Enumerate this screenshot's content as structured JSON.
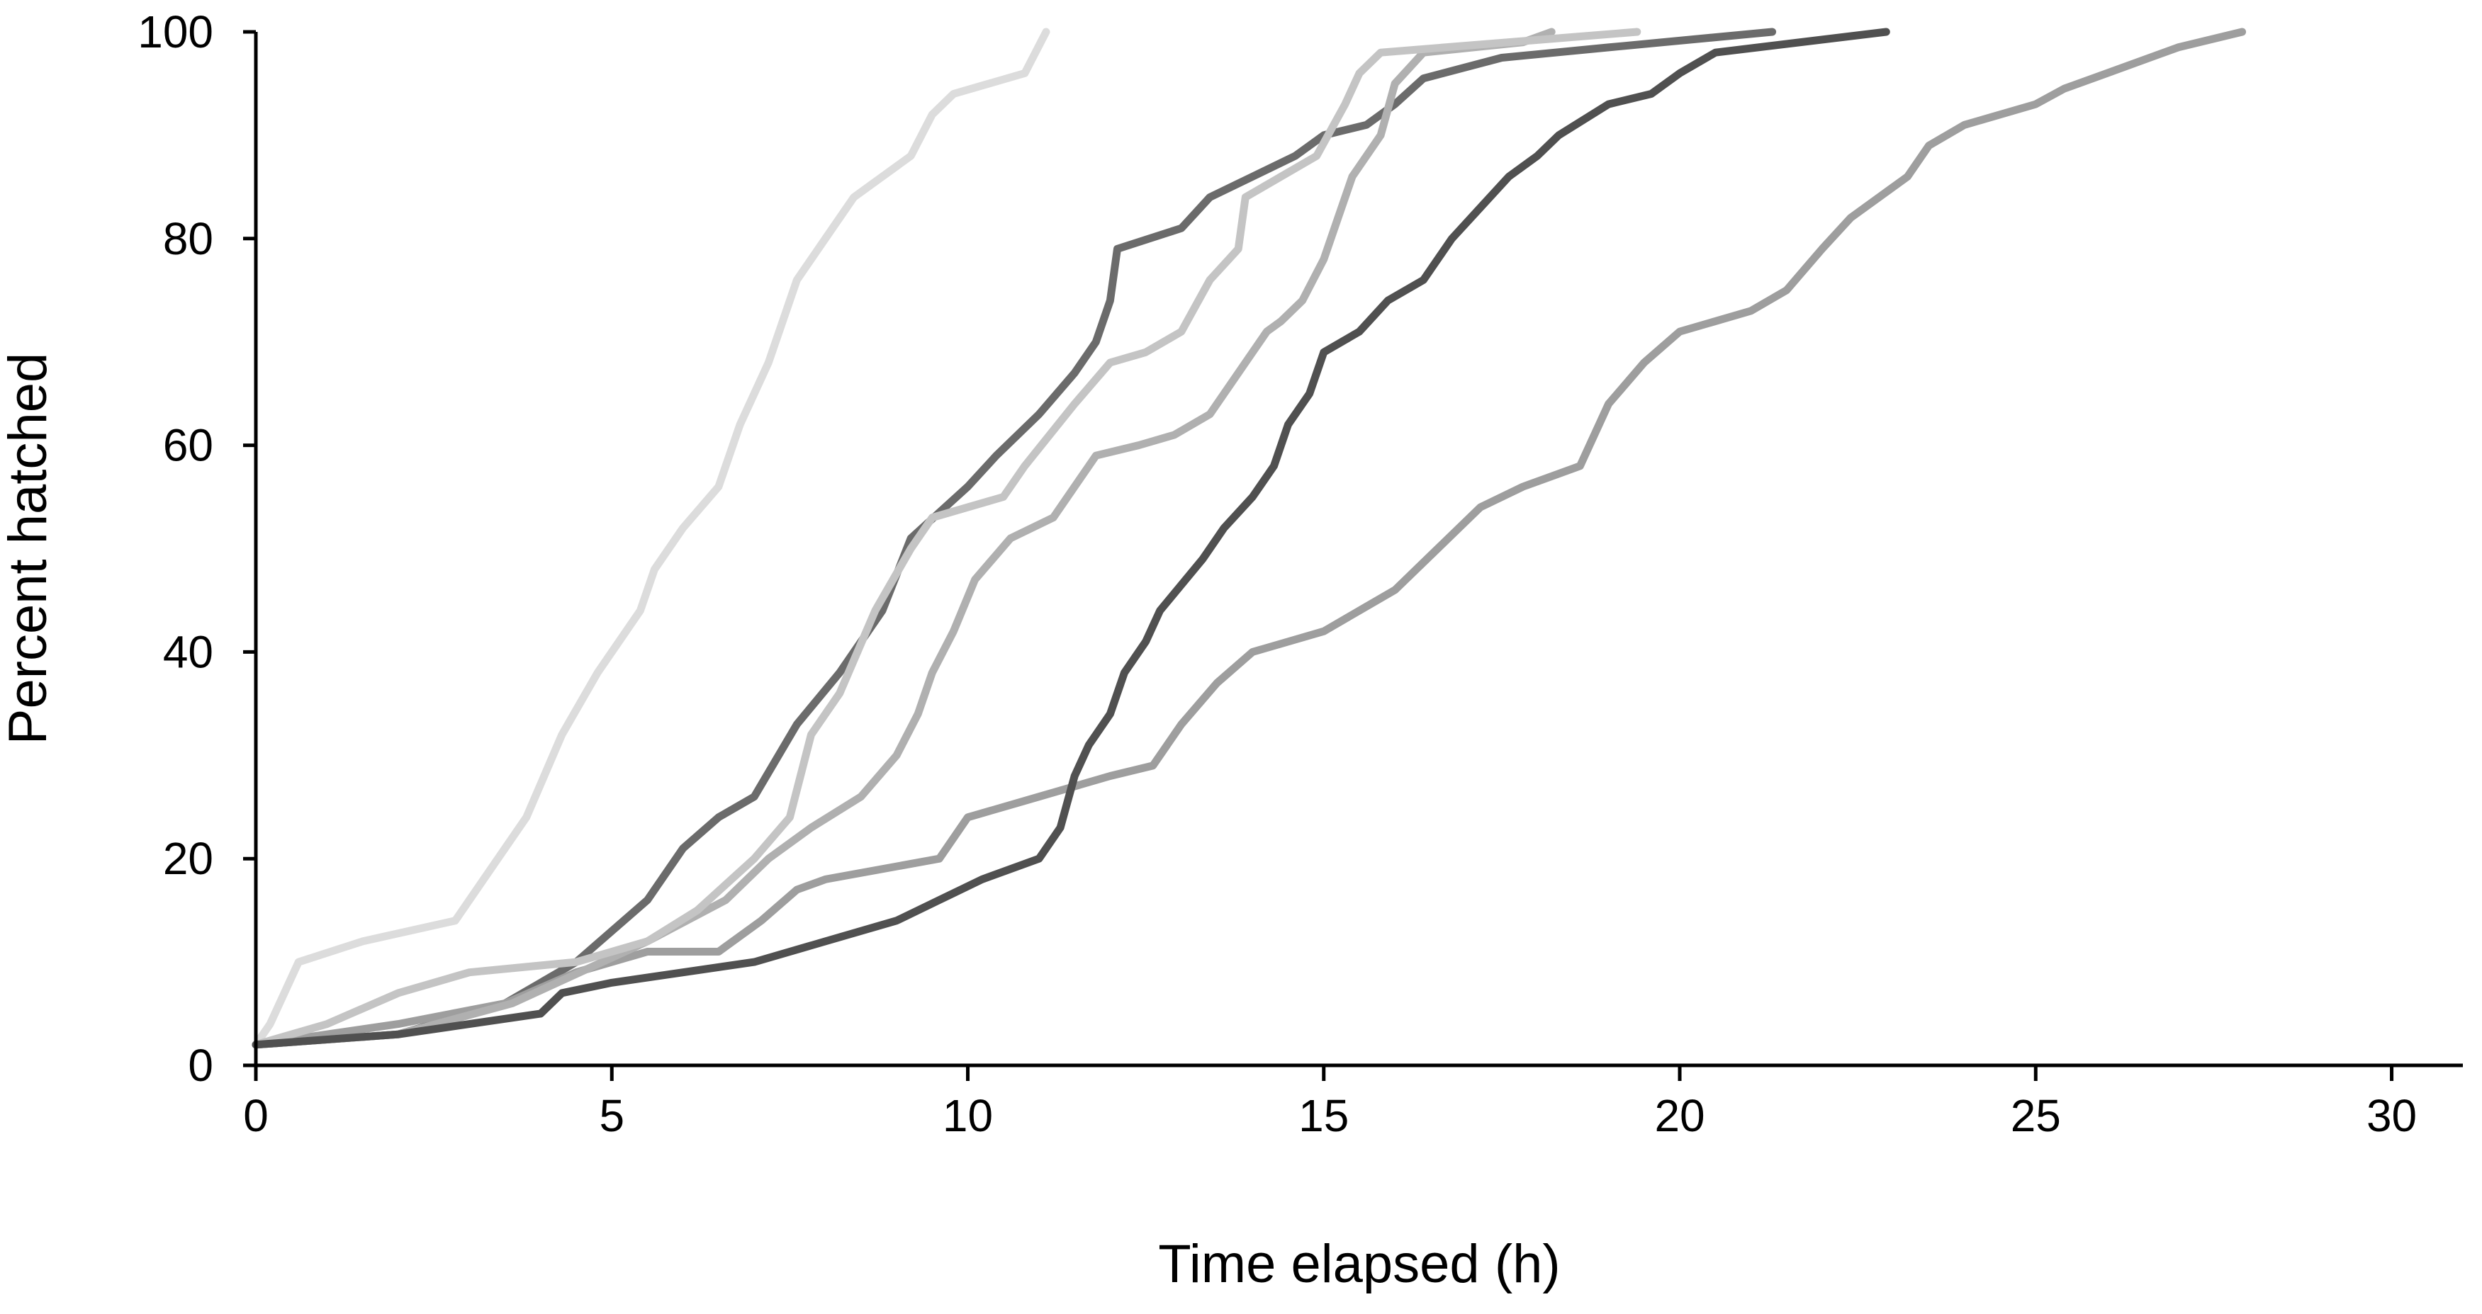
{
  "chart_data": {
    "type": "line",
    "title": "",
    "xlabel": "Time elapsed (h)",
    "ylabel": "Percent hatched",
    "xlim": [
      0,
      31
    ],
    "ylim": [
      0,
      100
    ],
    "x_ticks": [
      0,
      5,
      10,
      15,
      20,
      25,
      30
    ],
    "x_tick_labels": [
      "0",
      "5",
      "10",
      "15",
      "20",
      "25",
      "30"
    ],
    "y_ticks": [
      0,
      20,
      40,
      60,
      80,
      100
    ],
    "y_tick_labels": [
      "0",
      "20",
      "40",
      "60",
      "80",
      "100"
    ],
    "grid": false,
    "legend": "none",
    "series": [
      {
        "color": "#dcdcdc",
        "points": [
          [
            0,
            2
          ],
          [
            0.2,
            4
          ],
          [
            0.6,
            10
          ],
          [
            1.5,
            12
          ],
          [
            2.8,
            14
          ],
          [
            3.2,
            18
          ],
          [
            3.8,
            24
          ],
          [
            4.3,
            32
          ],
          [
            4.8,
            38
          ],
          [
            5.4,
            44
          ],
          [
            5.6,
            48
          ],
          [
            6,
            52
          ],
          [
            6.5,
            56
          ],
          [
            6.8,
            62
          ],
          [
            7.2,
            68
          ],
          [
            7.6,
            76
          ],
          [
            8,
            80
          ],
          [
            8.4,
            84
          ],
          [
            9.2,
            88
          ],
          [
            9.5,
            92
          ],
          [
            9.8,
            94
          ],
          [
            10.8,
            96
          ],
          [
            11.1,
            100
          ]
        ]
      },
      {
        "color": "#6b6b6b",
        "points": [
          [
            0,
            2
          ],
          [
            2,
            3
          ],
          [
            3.5,
            6
          ],
          [
            4.5,
            10
          ],
          [
            5.5,
            16
          ],
          [
            6,
            21
          ],
          [
            6.5,
            24
          ],
          [
            7,
            26
          ],
          [
            7.6,
            33
          ],
          [
            8.2,
            38
          ],
          [
            8.8,
            44
          ],
          [
            9.2,
            51
          ],
          [
            10,
            56
          ],
          [
            10.4,
            59
          ],
          [
            11,
            63
          ],
          [
            11.5,
            67
          ],
          [
            11.8,
            70
          ],
          [
            12,
            74
          ],
          [
            12.1,
            79
          ],
          [
            13,
            81
          ],
          [
            13.4,
            84
          ],
          [
            14,
            86
          ],
          [
            14.6,
            88
          ],
          [
            15,
            90
          ],
          [
            15.6,
            91
          ],
          [
            16,
            93
          ],
          [
            16.4,
            95.5
          ],
          [
            17.5,
            97.5
          ],
          [
            19,
            98.5
          ],
          [
            21.3,
            100
          ]
        ]
      },
      {
        "color": "#9e9e9e",
        "points": [
          [
            0,
            2
          ],
          [
            1,
            3
          ],
          [
            2,
            4
          ],
          [
            3.5,
            6
          ],
          [
            4.5,
            9
          ],
          [
            5.5,
            11
          ],
          [
            6.5,
            11
          ],
          [
            7.1,
            14
          ],
          [
            7.6,
            17
          ],
          [
            8,
            18
          ],
          [
            9.6,
            20
          ],
          [
            10,
            24
          ],
          [
            11,
            26
          ],
          [
            12,
            28
          ],
          [
            12.6,
            29
          ],
          [
            13,
            33
          ],
          [
            13.5,
            37
          ],
          [
            14,
            40
          ],
          [
            15,
            42
          ],
          [
            15.5,
            44
          ],
          [
            16,
            46
          ],
          [
            16.6,
            50
          ],
          [
            17.2,
            54
          ],
          [
            17.8,
            56
          ],
          [
            18.2,
            57
          ],
          [
            18.6,
            58
          ],
          [
            19,
            64
          ],
          [
            19.5,
            68
          ],
          [
            20,
            71
          ],
          [
            21,
            73
          ],
          [
            21.5,
            75
          ],
          [
            22,
            79
          ],
          [
            22.4,
            82
          ],
          [
            23.2,
            86
          ],
          [
            23.5,
            89
          ],
          [
            24,
            91
          ],
          [
            25,
            93
          ],
          [
            25.4,
            94.5
          ],
          [
            26,
            96
          ],
          [
            27,
            98.5
          ],
          [
            27.9,
            100
          ]
        ]
      },
      {
        "color": "#b0b0b0",
        "points": [
          [
            0,
            2
          ],
          [
            2,
            3
          ],
          [
            3.6,
            6
          ],
          [
            5.5,
            12
          ],
          [
            6.6,
            16
          ],
          [
            7.2,
            20
          ],
          [
            7.8,
            23
          ],
          [
            8.5,
            26
          ],
          [
            9,
            30
          ],
          [
            9.3,
            34
          ],
          [
            9.5,
            38
          ],
          [
            9.8,
            42
          ],
          [
            10.1,
            47
          ],
          [
            10.6,
            51
          ],
          [
            11.2,
            53
          ],
          [
            11.5,
            56
          ],
          [
            11.8,
            59
          ],
          [
            12.4,
            60
          ],
          [
            12.9,
            61
          ],
          [
            13.4,
            63
          ],
          [
            13.8,
            67
          ],
          [
            14.2,
            71
          ],
          [
            14.4,
            72
          ],
          [
            14.7,
            74
          ],
          [
            15,
            78
          ],
          [
            15.2,
            82
          ],
          [
            15.4,
            86
          ],
          [
            15.8,
            90
          ],
          [
            16,
            95
          ],
          [
            16.4,
            98
          ],
          [
            17.8,
            99
          ],
          [
            18.2,
            100
          ]
        ]
      },
      {
        "color": "#c4c4c4",
        "points": [
          [
            0,
            2
          ],
          [
            1,
            4
          ],
          [
            2,
            7
          ],
          [
            3,
            9
          ],
          [
            4.5,
            10
          ],
          [
            5.5,
            12
          ],
          [
            6.2,
            15
          ],
          [
            7,
            20
          ],
          [
            7.5,
            24
          ],
          [
            7.8,
            32
          ],
          [
            8.2,
            36
          ],
          [
            8.7,
            44
          ],
          [
            9.2,
            50
          ],
          [
            9.5,
            53
          ],
          [
            10.5,
            55
          ],
          [
            10.8,
            58
          ],
          [
            11.5,
            64
          ],
          [
            12,
            68
          ],
          [
            12.5,
            69
          ],
          [
            13,
            71
          ],
          [
            13.4,
            76
          ],
          [
            13.8,
            79
          ],
          [
            13.9,
            84
          ],
          [
            14.4,
            86
          ],
          [
            14.9,
            88
          ],
          [
            15.3,
            93
          ],
          [
            15.5,
            96
          ],
          [
            15.8,
            98
          ],
          [
            19.4,
            100
          ]
        ]
      },
      {
        "color": "#505050",
        "points": [
          [
            0,
            2
          ],
          [
            2,
            3
          ],
          [
            3,
            4
          ],
          [
            4,
            5
          ],
          [
            4.3,
            7
          ],
          [
            5,
            8
          ],
          [
            7,
            10
          ],
          [
            8,
            12
          ],
          [
            9,
            14
          ],
          [
            9.6,
            16
          ],
          [
            10.2,
            18
          ],
          [
            11,
            20
          ],
          [
            11.3,
            23
          ],
          [
            11.5,
            28
          ],
          [
            11.7,
            31
          ],
          [
            12,
            34
          ],
          [
            12.2,
            38
          ],
          [
            12.5,
            41
          ],
          [
            12.7,
            44
          ],
          [
            13.3,
            49
          ],
          [
            13.6,
            52
          ],
          [
            14,
            55
          ],
          [
            14.3,
            58
          ],
          [
            14.5,
            62
          ],
          [
            14.8,
            65
          ],
          [
            15,
            69
          ],
          [
            15.5,
            71
          ],
          [
            15.9,
            74
          ],
          [
            16.4,
            76
          ],
          [
            16.8,
            80
          ],
          [
            17.2,
            83
          ],
          [
            17.6,
            86
          ],
          [
            18,
            88
          ],
          [
            18.3,
            90
          ],
          [
            19,
            93
          ],
          [
            19.6,
            94
          ],
          [
            20,
            96
          ],
          [
            20.5,
            98
          ],
          [
            22.9,
            100
          ]
        ]
      }
    ]
  }
}
